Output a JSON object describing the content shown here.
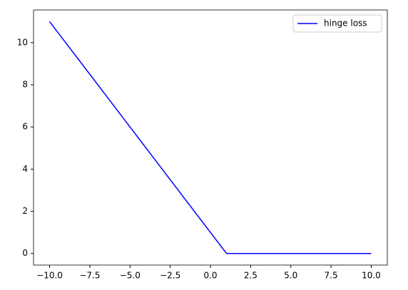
{
  "chart_data": {
    "type": "line",
    "x": [
      -10,
      1,
      10
    ],
    "series": [
      {
        "name": "hinge loss",
        "color": "#0000ff",
        "values": [
          11,
          0,
          0
        ]
      }
    ],
    "xlim": [
      -11,
      11
    ],
    "ylim": [
      -0.55,
      11.55
    ],
    "xticks": [
      {
        "value": -10,
        "label": "−10.0"
      },
      {
        "value": -7.5,
        "label": "−7.5"
      },
      {
        "value": -5,
        "label": "−5.0"
      },
      {
        "value": -2.5,
        "label": "−2.5"
      },
      {
        "value": 0,
        "label": "0.0"
      },
      {
        "value": 2.5,
        "label": "2.5"
      },
      {
        "value": 5,
        "label": "5.0"
      },
      {
        "value": 7.5,
        "label": "7.5"
      },
      {
        "value": 10,
        "label": "10.0"
      }
    ],
    "yticks": [
      0,
      2,
      4,
      6,
      8,
      10
    ],
    "grid": false,
    "legend": "upper-right"
  }
}
